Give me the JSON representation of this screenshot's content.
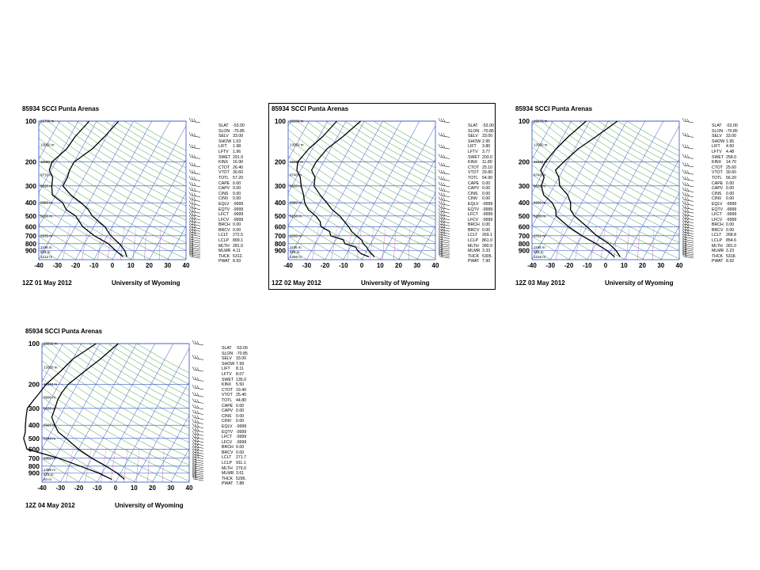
{
  "chart_data": [
    {
      "type": "skew-t",
      "title": "85934 SCCI Punta Arenas",
      "date": "12Z 01 May 2012",
      "source": "University of Wyoming",
      "pressure_ticks": [
        100,
        200,
        300,
        400,
        500,
        600,
        700,
        800,
        900
      ],
      "temp_ticks": [
        -40,
        -30,
        -20,
        -10,
        0,
        10,
        20,
        30,
        40
      ],
      "height_labels": [
        {
          "p": 100,
          "label": "15700 m"
        },
        {
          "p": 150,
          "label": "13050 m"
        },
        {
          "p": 200,
          "label": "11190 m"
        },
        {
          "p": 250,
          "label": "9710 m"
        },
        {
          "p": 300,
          "label": "8630 m"
        },
        {
          "p": 400,
          "label": "6890 m"
        },
        {
          "p": 500,
          "label": "5150 m"
        },
        {
          "p": 700,
          "label": "2635 m"
        },
        {
          "p": 850,
          "label": "1195 m"
        },
        {
          "p": 925,
          "label": "622 m"
        },
        {
          "p": 1000,
          "label": "1212 m"
        }
      ],
      "temperature": [
        [
          100,
          -38
        ],
        [
          130,
          -41
        ],
        [
          160,
          -44
        ],
        [
          200,
          -50
        ],
        [
          230,
          -50
        ],
        [
          260,
          -49
        ],
        [
          300,
          -49
        ],
        [
          350,
          -42
        ],
        [
          400,
          -34
        ],
        [
          450,
          -28
        ],
        [
          500,
          -24
        ],
        [
          600,
          -14
        ],
        [
          700,
          -8
        ],
        [
          800,
          -1
        ],
        [
          900,
          4
        ],
        [
          1000,
          7
        ]
      ],
      "dewpoint": [
        [
          100,
          -54
        ],
        [
          130,
          -57
        ],
        [
          160,
          -58
        ],
        [
          200,
          -62
        ],
        [
          230,
          -61
        ],
        [
          260,
          -57
        ],
        [
          300,
          -55
        ],
        [
          350,
          -52
        ],
        [
          400,
          -44
        ],
        [
          450,
          -40
        ],
        [
          500,
          -33
        ],
        [
          600,
          -26
        ],
        [
          700,
          -17
        ],
        [
          800,
          -7
        ],
        [
          900,
          -1
        ],
        [
          1000,
          5
        ]
      ],
      "indices": [
        [
          "SLAT",
          "-53.00"
        ],
        [
          "SLON",
          "-70.85"
        ],
        [
          "SELV",
          "33.00"
        ],
        [
          "SHOW",
          "1.63"
        ],
        [
          "LIFT",
          "1.98"
        ],
        [
          "LFTV",
          "1.96"
        ],
        [
          "SWET",
          "291.9"
        ],
        [
          "KINX",
          "16.90"
        ],
        [
          "CTOT",
          "26.40"
        ],
        [
          "VTOT",
          "30.60"
        ],
        [
          "TOTL",
          "57.20"
        ],
        [
          "CAPE",
          "0.00"
        ],
        [
          "CAPV",
          "0.00"
        ],
        [
          "CINS",
          "0.00"
        ],
        [
          "CINV",
          "0.00"
        ],
        [
          "EQLV",
          "-9999"
        ],
        [
          "EQTV",
          "-9999"
        ],
        [
          "LFCT",
          "-9999"
        ],
        [
          "LFCV",
          "-9999"
        ],
        [
          "BRCH",
          "0.00"
        ],
        [
          "BRCV",
          "0.00"
        ],
        [
          "LCLT",
          "272.5"
        ],
        [
          "LCLP",
          "899.1"
        ],
        [
          "MLTH",
          "281.0"
        ],
        [
          "MLMR",
          "4.11"
        ],
        [
          "THCK",
          "5312."
        ],
        [
          "PWAT",
          "8.93"
        ]
      ]
    },
    {
      "type": "skew-t",
      "title": "85934 SCCI Punta Arenas",
      "date": "12Z 02 May 2012",
      "source": "University of Wyoming",
      "pressure_ticks": [
        100,
        200,
        300,
        400,
        500,
        600,
        700,
        800,
        900
      ],
      "temp_ticks": [
        -40,
        -30,
        -20,
        -10,
        0,
        10,
        20,
        30,
        40
      ],
      "height_labels": [
        {
          "p": 100,
          "label": "15660 m"
        },
        {
          "p": 150,
          "label": "13050 m"
        },
        {
          "p": 200,
          "label": "11190 m"
        },
        {
          "p": 250,
          "label": "9740 m"
        },
        {
          "p": 300,
          "label": "8630 m"
        },
        {
          "p": 400,
          "label": "6880 m"
        },
        {
          "p": 500,
          "label": "5150 m"
        },
        {
          "p": 700,
          "label": "2635 m"
        },
        {
          "p": 850,
          "label": "1195 m"
        },
        {
          "p": 925,
          "label": "622 m"
        },
        {
          "p": 1000,
          "label": "1266 m"
        }
      ],
      "temperature": [
        [
          100,
          -42
        ],
        [
          130,
          -47
        ],
        [
          160,
          -52
        ],
        [
          200,
          -54
        ],
        [
          230,
          -54
        ],
        [
          260,
          -50
        ],
        [
          300,
          -48
        ],
        [
          350,
          -42
        ],
        [
          400,
          -36
        ],
        [
          450,
          -31
        ],
        [
          500,
          -25
        ],
        [
          600,
          -17
        ],
        [
          650,
          -14
        ],
        [
          700,
          -10
        ],
        [
          750,
          -6
        ],
        [
          800,
          -4
        ],
        [
          850,
          -1
        ],
        [
          900,
          1
        ],
        [
          1000,
          6
        ]
      ],
      "dewpoint": [
        [
          100,
          -55
        ],
        [
          130,
          -58
        ],
        [
          160,
          -62
        ],
        [
          200,
          -64
        ],
        [
          230,
          -62
        ],
        [
          260,
          -58
        ],
        [
          300,
          -55
        ],
        [
          350,
          -51
        ],
        [
          400,
          -48
        ],
        [
          450,
          -44
        ],
        [
          500,
          -38
        ],
        [
          550,
          -34
        ],
        [
          600,
          -32
        ],
        [
          650,
          -26
        ],
        [
          700,
          -24
        ],
        [
          750,
          -16
        ],
        [
          800,
          -14
        ],
        [
          850,
          -7
        ],
        [
          900,
          -5
        ],
        [
          950,
          -2
        ],
        [
          1000,
          3
        ]
      ],
      "indices": [
        [
          "SLAT",
          "-53.00"
        ],
        [
          "SLON",
          "-70.85"
        ],
        [
          "SELV",
          "33.00"
        ],
        [
          "SHOW",
          "2.95"
        ],
        [
          "LIFT",
          "3.80"
        ],
        [
          "LFTV",
          "3.77"
        ],
        [
          "SWET",
          "203.0"
        ],
        [
          "KINX",
          "11.80"
        ],
        [
          "CTOT",
          "25.10"
        ],
        [
          "VTOT",
          "29.80"
        ],
        [
          "TOTL",
          "54.90"
        ],
        [
          "CAPE",
          "0.00"
        ],
        [
          "CAPV",
          "0.00"
        ],
        [
          "CINS",
          "0.00"
        ],
        [
          "CINV",
          "0.00"
        ],
        [
          "EQLV",
          "-9999"
        ],
        [
          "EQTV",
          "-9999"
        ],
        [
          "LFCT",
          "-9999"
        ],
        [
          "LFCV",
          "-9999"
        ],
        [
          "BRCH",
          "0.00"
        ],
        [
          "BRCV",
          "0.00"
        ],
        [
          "LCLT",
          "269.1"
        ],
        [
          "LCLP",
          "861.0"
        ],
        [
          "MLTH",
          "280.9"
        ],
        [
          "MLMR",
          "3.33"
        ],
        [
          "THCK",
          "5305."
        ],
        [
          "PWAT",
          "7.90"
        ]
      ]
    },
    {
      "type": "skew-t",
      "title": "85934 SCCI Punta Arenas",
      "date": "12Z 03 May 2012",
      "source": "University of Wyoming",
      "pressure_ticks": [
        100,
        200,
        300,
        400,
        500,
        600,
        700,
        800,
        900
      ],
      "temp_ticks": [
        -40,
        -30,
        -20,
        -10,
        0,
        10,
        20,
        30,
        40
      ],
      "height_labels": [
        {
          "p": 100,
          "label": "15670 m"
        },
        {
          "p": 150,
          "label": "13050 m"
        },
        {
          "p": 200,
          "label": "11240 m"
        },
        {
          "p": 250,
          "label": "9740 m"
        },
        {
          "p": 300,
          "label": "8630 m"
        },
        {
          "p": 400,
          "label": "6930 m"
        },
        {
          "p": 500,
          "label": "5200 m"
        },
        {
          "p": 700,
          "label": "2721 m"
        },
        {
          "p": 850,
          "label": "1195 m"
        },
        {
          "p": 925,
          "label": "652 m"
        },
        {
          "p": 1000,
          "label": "1216 m"
        }
      ],
      "temperature": [
        [
          100,
          -35
        ],
        [
          130,
          -42
        ],
        [
          160,
          -48
        ],
        [
          200,
          -52
        ],
        [
          230,
          -54
        ],
        [
          260,
          -50
        ],
        [
          300,
          -47
        ],
        [
          350,
          -40
        ],
        [
          400,
          -36
        ],
        [
          450,
          -34
        ],
        [
          500,
          -30
        ],
        [
          600,
          -20
        ],
        [
          700,
          -12
        ],
        [
          800,
          -3
        ],
        [
          900,
          3
        ],
        [
          1000,
          7
        ]
      ],
      "dewpoint": [
        [
          100,
          -52
        ],
        [
          130,
          -57
        ],
        [
          160,
          -60
        ],
        [
          200,
          -62
        ],
        [
          230,
          -62
        ],
        [
          260,
          -58
        ],
        [
          300,
          -57
        ],
        [
          350,
          -53
        ],
        [
          400,
          -46
        ],
        [
          450,
          -42
        ],
        [
          500,
          -40
        ],
        [
          600,
          -30
        ],
        [
          700,
          -20
        ],
        [
          800,
          -10
        ],
        [
          900,
          -2
        ],
        [
          1000,
          4
        ]
      ],
      "indices": [
        [
          "SLAT",
          "-53.00"
        ],
        [
          "SLON",
          "-70.85"
        ],
        [
          "SELV",
          "33.00"
        ],
        [
          "SHOW",
          "1.95"
        ],
        [
          "LIFT",
          "4.50"
        ],
        [
          "LFTV",
          "4.48"
        ],
        [
          "SWET",
          "258.0"
        ],
        [
          "KINX",
          "14.70"
        ],
        [
          "CTOT",
          "25.60"
        ],
        [
          "VTOT",
          "30.60"
        ],
        [
          "TOTL",
          "56.20"
        ],
        [
          "CAPE",
          "0.00"
        ],
        [
          "CAPV",
          "0.00"
        ],
        [
          "CINS",
          "0.00"
        ],
        [
          "CINV",
          "0.00"
        ],
        [
          "EQLV",
          "-9999"
        ],
        [
          "EQTV",
          "-9999"
        ],
        [
          "LFCT",
          "-9999"
        ],
        [
          "LFCV",
          "-9999"
        ],
        [
          "BRCH",
          "0.00"
        ],
        [
          "BRCV",
          "0.00"
        ],
        [
          "LCLT",
          "268.8"
        ],
        [
          "LCLP",
          "854.6"
        ],
        [
          "MLTH",
          "281.0"
        ],
        [
          "MLMR",
          "3.23"
        ],
        [
          "THCK",
          "5318."
        ],
        [
          "PWAT",
          "8.92"
        ]
      ]
    },
    {
      "type": "skew-t",
      "title": "85934 SCCI Punta Arenas",
      "date": "12Z 04 May 2012",
      "source": "University of Wyoming",
      "pressure_ticks": [
        100,
        200,
        300,
        400,
        500,
        600,
        700,
        800,
        900
      ],
      "temp_ticks": [
        -40,
        -30,
        -20,
        -10,
        0,
        10,
        20,
        30,
        40
      ],
      "height_labels": [
        {
          "p": 100,
          "label": "15610 m"
        },
        {
          "p": 150,
          "label": "13350 m"
        },
        {
          "p": 200,
          "label": "11440 m"
        },
        {
          "p": 250,
          "label": "9990 m"
        },
        {
          "p": 300,
          "label": "8630 m"
        },
        {
          "p": 400,
          "label": "6920 m"
        },
        {
          "p": 500,
          "label": "5340 m"
        },
        {
          "p": 700,
          "label": "2858 m"
        },
        {
          "p": 850,
          "label": "1396 m"
        },
        {
          "p": 925,
          "label": "672 m"
        },
        {
          "p": 1000,
          "label": "84 m"
        }
      ],
      "temperature": [
        [
          100,
          -40
        ],
        [
          130,
          -45
        ],
        [
          160,
          -50
        ],
        [
          200,
          -55
        ],
        [
          230,
          -56
        ],
        [
          260,
          -56
        ],
        [
          300,
          -55
        ],
        [
          350,
          -54
        ],
        [
          400,
          -50
        ],
        [
          450,
          -46
        ],
        [
          500,
          -40
        ],
        [
          600,
          -30
        ],
        [
          700,
          -20
        ],
        [
          800,
          -10
        ],
        [
          900,
          -2
        ],
        [
          1000,
          4
        ]
      ],
      "dewpoint": [
        [
          100,
          -52
        ],
        [
          130,
          -60
        ],
        [
          160,
          -63
        ],
        [
          200,
          -67
        ],
        [
          230,
          -68
        ],
        [
          260,
          -69
        ],
        [
          300,
          -70
        ],
        [
          350,
          -68
        ],
        [
          400,
          -66
        ],
        [
          450,
          -64
        ],
        [
          500,
          -63
        ],
        [
          600,
          -58
        ],
        [
          700,
          -38
        ],
        [
          800,
          -24
        ],
        [
          900,
          -12
        ],
        [
          1000,
          -3
        ]
      ],
      "indices": [
        [
          "SLAT",
          "-53.00"
        ],
        [
          "SLON",
          "-70.85"
        ],
        [
          "SELV",
          "33.00"
        ],
        [
          "SHOW",
          "7.99"
        ],
        [
          "LIFT",
          "8.11"
        ],
        [
          "LFTV",
          "8.07"
        ],
        [
          "SWET",
          "135.0"
        ],
        [
          "KINX",
          "5.50"
        ],
        [
          "CTOT",
          "19.40"
        ],
        [
          "VTOT",
          "25.40"
        ],
        [
          "TOTL",
          "44.80"
        ],
        [
          "CAPE",
          "0.00"
        ],
        [
          "CAPV",
          "0.00"
        ],
        [
          "CINS",
          "0.00"
        ],
        [
          "CINV",
          "0.00"
        ],
        [
          "EQLV",
          "-9999"
        ],
        [
          "EQTV",
          "-9999"
        ],
        [
          "LFCT",
          "-9999"
        ],
        [
          "LFCV",
          "-9999"
        ],
        [
          "BRCH",
          "0.00"
        ],
        [
          "BRCV",
          "0.00"
        ],
        [
          "LCLT",
          "271.7"
        ],
        [
          "LCLP",
          "911.1"
        ],
        [
          "MLTH",
          "279.0"
        ],
        [
          "MLMR",
          "3.61"
        ],
        [
          "THCK",
          "5296."
        ],
        [
          "PWAT",
          "7.88"
        ]
      ]
    }
  ]
}
